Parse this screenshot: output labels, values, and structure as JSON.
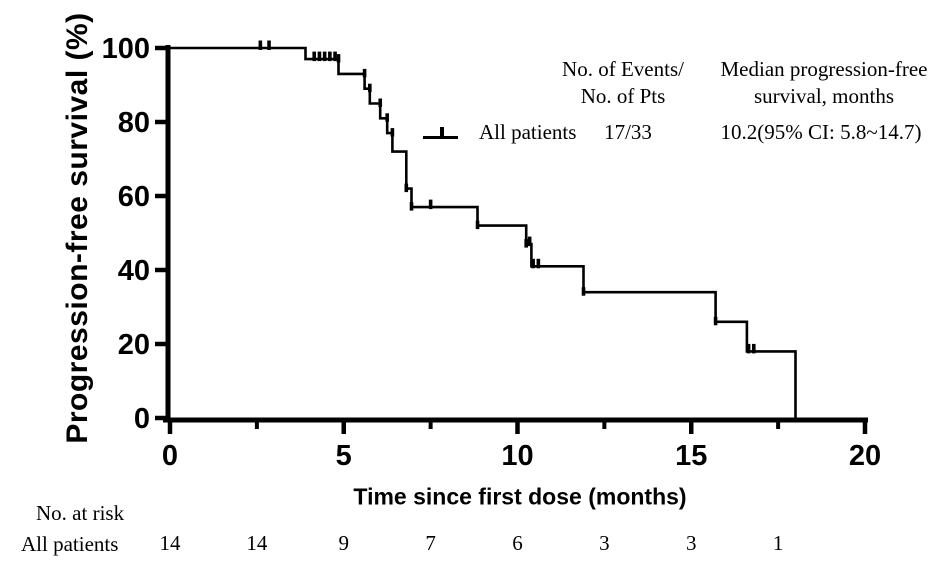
{
  "chart_data": {
    "type": "line",
    "subtype": "kaplan-meier-step",
    "title": "",
    "xlabel": "Time since first dose (months)",
    "ylabel": "Progression-free survival (%)",
    "xlim": [
      0,
      20
    ],
    "ylim": [
      0,
      100
    ],
    "xticks": [
      0,
      5,
      10,
      15,
      20
    ],
    "xticks_minor": [
      2.5,
      7.5,
      12.5,
      17.5
    ],
    "yticks": [
      0,
      20,
      40,
      60,
      80,
      100
    ],
    "grid": false,
    "legend_position": "upper-right-inside",
    "series": [
      {
        "name": "All patients",
        "color": "#000000",
        "steps": [
          [
            0,
            100
          ],
          [
            3.9,
            97
          ],
          [
            4.85,
            93
          ],
          [
            5.6,
            89
          ],
          [
            5.75,
            85
          ],
          [
            6.05,
            81
          ],
          [
            6.25,
            77
          ],
          [
            6.4,
            72
          ],
          [
            6.8,
            62
          ],
          [
            6.95,
            57
          ],
          [
            8.85,
            52
          ],
          [
            10.25,
            47
          ],
          [
            10.4,
            41
          ],
          [
            11.9,
            34
          ],
          [
            15.7,
            26
          ],
          [
            16.6,
            18
          ],
          [
            18,
            0
          ]
        ],
        "censor_marks": [
          [
            2.6,
            100
          ],
          [
            2.85,
            100
          ],
          [
            4.15,
            97
          ],
          [
            4.3,
            97
          ],
          [
            4.45,
            97
          ],
          [
            4.6,
            97
          ],
          [
            4.75,
            97
          ],
          [
            7.5,
            57
          ],
          [
            10.35,
            47
          ],
          [
            10.45,
            41
          ],
          [
            10.6,
            41
          ],
          [
            16.65,
            18
          ],
          [
            16.8,
            18
          ]
        ],
        "corner_ticks": [
          [
            4.85,
            97
          ],
          [
            5.6,
            93
          ],
          [
            5.75,
            89
          ],
          [
            6.05,
            85
          ],
          [
            6.25,
            81
          ],
          [
            6.4,
            77
          ],
          [
            6.8,
            62
          ],
          [
            6.95,
            57
          ],
          [
            8.85,
            52
          ],
          [
            10.25,
            47
          ],
          [
            11.9,
            34
          ],
          [
            15.7,
            26
          ]
        ]
      }
    ]
  },
  "legend": {
    "events_header": [
      "No. of Events/",
      "No. of Pts"
    ],
    "median_header": [
      "Median progression-free",
      "survival, months"
    ],
    "rows": [
      {
        "label": "All patients",
        "events": "17/33",
        "median": "10.2(95% CI: 5.8~14.7)"
      }
    ]
  },
  "risk_table": {
    "title": "No. at risk",
    "rows": [
      {
        "label": "All patients",
        "times": [
          0,
          2.5,
          5,
          7.5,
          10,
          12.5,
          15,
          17.5
        ],
        "values": [
          14,
          14,
          9,
          7,
          6,
          3,
          3,
          1
        ]
      }
    ]
  },
  "colors": {
    "line": "#000000",
    "text": "#000000",
    "background": "#ffffff"
  }
}
